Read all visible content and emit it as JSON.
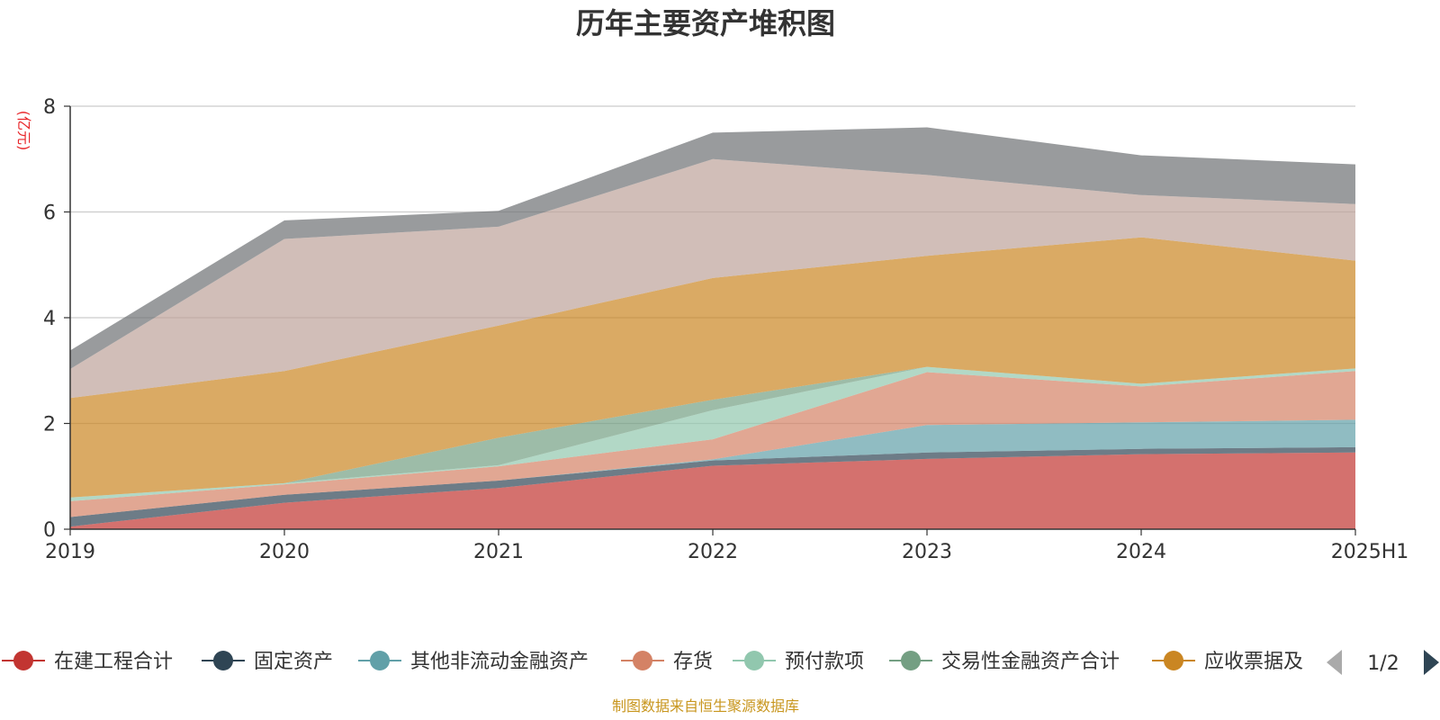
{
  "chart_data": {
    "type": "area",
    "stacked": true,
    "title": "历年主要资产堆积图",
    "ylabel": "(亿元)",
    "source": "制图数据来自恒生聚源数据库",
    "categories": [
      "2019",
      "2020",
      "2021",
      "2022",
      "2023",
      "2024",
      "2025H1"
    ],
    "ylim": [
      0,
      8
    ],
    "yticks": [
      0,
      2,
      4,
      6,
      8
    ],
    "grid": true,
    "series": [
      {
        "name": "在建工程合计",
        "color": "#c23531",
        "values": [
          0.05,
          0.5,
          0.78,
          1.2,
          1.33,
          1.42,
          1.45
        ],
        "in_legend": true
      },
      {
        "name": "固定资产",
        "color": "#2f4554",
        "values": [
          0.18,
          0.15,
          0.14,
          0.1,
          0.12,
          0.1,
          0.1
        ],
        "in_legend": true
      },
      {
        "name": "其他非流动金融资产",
        "color": "#61a0a8",
        "values": [
          0.0,
          0.0,
          0.0,
          0.02,
          0.52,
          0.5,
          0.52
        ],
        "in_legend": true
      },
      {
        "name": "存货",
        "color": "#d48265",
        "values": [
          0.3,
          0.2,
          0.27,
          0.38,
          1.0,
          0.68,
          0.92
        ],
        "in_legend": true
      },
      {
        "name": "预付款项",
        "color": "#91c7ae",
        "values": [
          0.07,
          0.02,
          0.02,
          0.55,
          0.1,
          0.05,
          0.05
        ],
        "in_legend": true
      },
      {
        "name": "交易性金融资产合计",
        "color": "#749f83",
        "values": [
          0.0,
          0.0,
          0.52,
          0.2,
          0.0,
          0.0,
          0.0
        ],
        "in_legend": true
      },
      {
        "name": "应收票据及",
        "color": "#ca8622",
        "values": [
          1.88,
          2.12,
          2.12,
          2.3,
          2.1,
          2.77,
          2.04
        ],
        "in_legend": true
      },
      {
        "name": "",
        "color": "#bda29a",
        "values": [
          0.55,
          2.5,
          1.87,
          2.25,
          1.53,
          0.8,
          1.07
        ],
        "in_legend": false
      },
      {
        "name": "",
        "color": "#6e7074",
        "values": [
          0.35,
          0.35,
          0.3,
          0.5,
          0.9,
          0.75,
          0.75
        ],
        "in_legend": false
      }
    ],
    "legend": {
      "position": "bottom",
      "page_indicator": "1/2"
    }
  }
}
